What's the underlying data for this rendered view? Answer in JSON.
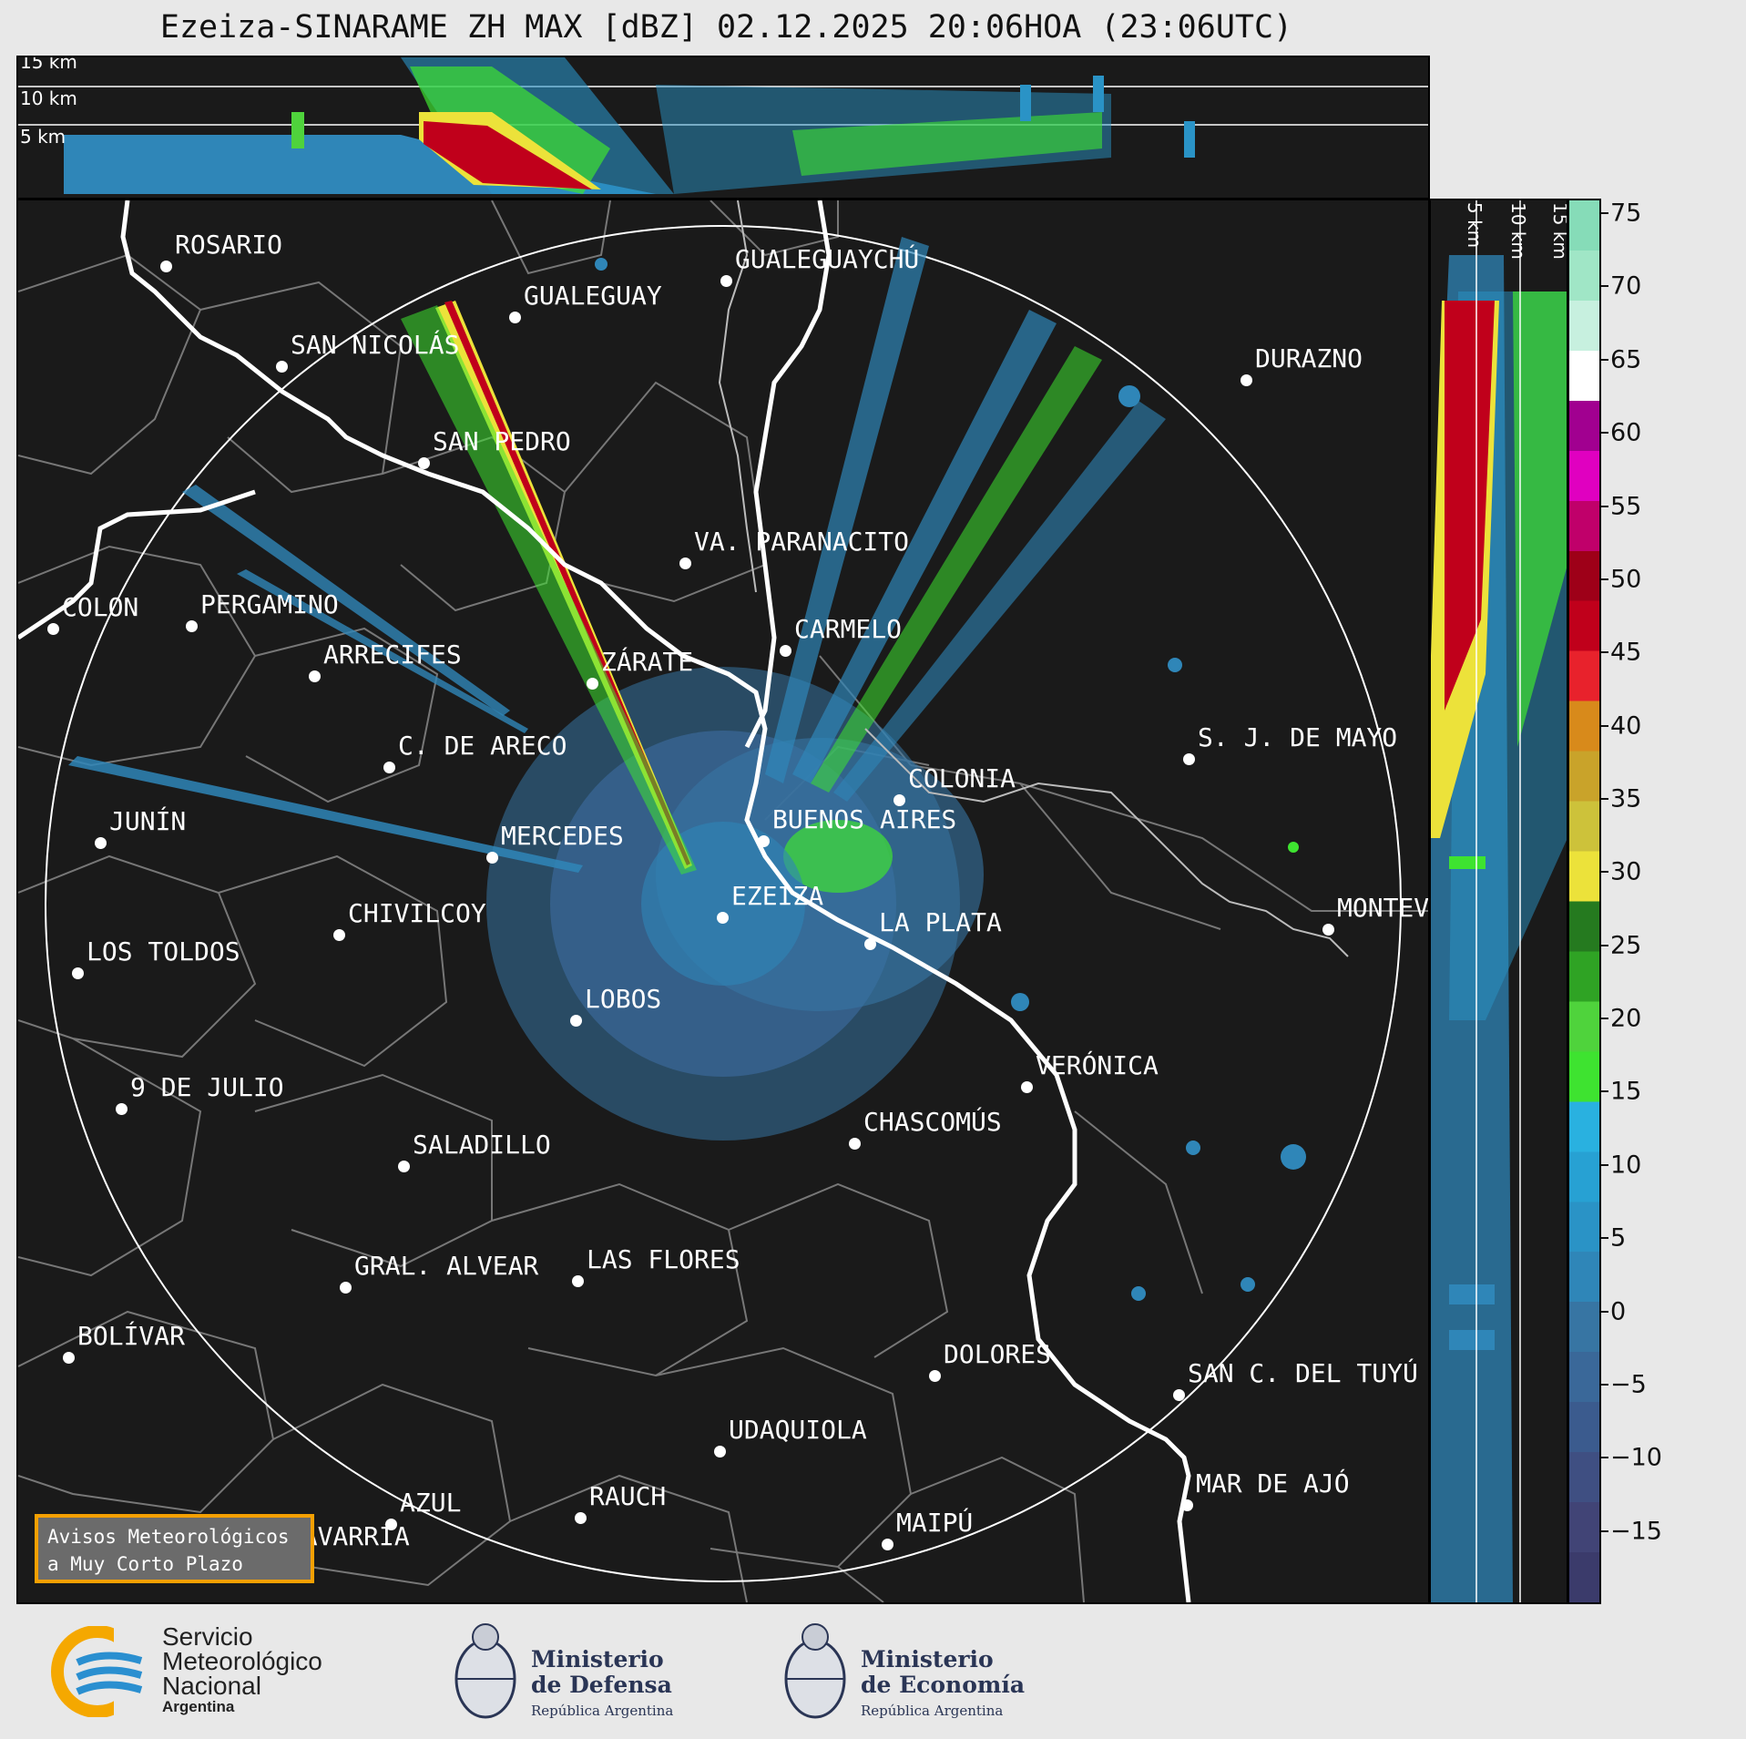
{
  "title": "Ezeiza-SINARAME ZH MAX [dBZ] 02.12.2025 20:06HOA (23:06UTC)",
  "top_panel": {
    "km_labels": [
      "15 km",
      "10 km",
      "5 km"
    ]
  },
  "side_panel": {
    "km_labels": [
      "5 km",
      "10 km",
      "15 km"
    ]
  },
  "colorbar": {
    "ticks": [
      "75",
      "70",
      "65",
      "60",
      "55",
      "50",
      "45",
      "40",
      "35",
      "30",
      "25",
      "20",
      "15",
      "10",
      "5",
      "0",
      "−5",
      "−10",
      "−15"
    ],
    "range_dbz": [
      -20,
      76
    ],
    "colors": [
      "#3b3b6b",
      "#414476",
      "#3f4f82",
      "#3b5b8e",
      "#3a6899",
      "#3775a3",
      "#2f86b8",
      "#2a93c6",
      "#27a1d3",
      "#29b1e0",
      "#3ee330",
      "#4fd33c",
      "#2fa324",
      "#257a1f",
      "#ece23a",
      "#cdc23a",
      "#c9a32a",
      "#d88a1b",
      "#e8222c",
      "#c0001b",
      "#9e0018",
      "#c0006a",
      "#e000c0",
      "#a10090",
      "#ffffff",
      "#c7f0df",
      "#a0e6c6",
      "#86dcb8"
    ]
  },
  "cities": [
    {
      "name": "ROSARIO"
    },
    {
      "name": "GUALEGUAYCHÚ"
    },
    {
      "name": "GUALEGUAY"
    },
    {
      "name": "SAN NICOLÁS"
    },
    {
      "name": "DURAZNO"
    },
    {
      "name": "SAN PEDRO"
    },
    {
      "name": "VA. PARANACITO"
    },
    {
      "name": "COLON"
    },
    {
      "name": "PERGAMINO"
    },
    {
      "name": "CARMELO"
    },
    {
      "name": "ARRECIFES"
    },
    {
      "name": "ZÁRATE"
    },
    {
      "name": "S. J. DE MAYO"
    },
    {
      "name": "C. DE ARECO"
    },
    {
      "name": "COLONIA"
    },
    {
      "name": "JUNÍN"
    },
    {
      "name": "BUENOS AIRES"
    },
    {
      "name": "MERCEDES"
    },
    {
      "name": "MONTEVIDEO"
    },
    {
      "name": "EZEIZA"
    },
    {
      "name": "CHIVILCOY"
    },
    {
      "name": "LA PLATA"
    },
    {
      "name": "LOS TOLDOS"
    },
    {
      "name": "LOBOS"
    },
    {
      "name": "VERÓNICA"
    },
    {
      "name": "9 DE JULIO"
    },
    {
      "name": "CHASCOMÚS"
    },
    {
      "name": "SALADILLO"
    },
    {
      "name": "GRAL. ALVEAR"
    },
    {
      "name": "LAS FLORES"
    },
    {
      "name": "BOLÍVAR"
    },
    {
      "name": "DOLORES"
    },
    {
      "name": "SAN C. DEL TUYÚ"
    },
    {
      "name": "UDAQUIOLA"
    },
    {
      "name": "MAR DE AJÓ"
    },
    {
      "name": "AZUL"
    },
    {
      "name": "RAUCH"
    },
    {
      "name": "MAIPÚ"
    },
    {
      "name": "OLAVARRÍA"
    }
  ],
  "avisos": {
    "line1": "Avisos Meteorológicos",
    "line2": "a Muy Corto Plazo"
  },
  "footer": {
    "smn": {
      "line1": "Servicio",
      "line2": "Meteorológico",
      "line3": "Nacional",
      "line4": "Argentina"
    },
    "defensa": {
      "line1": "Ministerio",
      "line2": "de Defensa",
      "line3": "República Argentina"
    },
    "economia": {
      "line1": "Ministerio",
      "line2": "de Economía",
      "line3": "República Argentina"
    }
  }
}
